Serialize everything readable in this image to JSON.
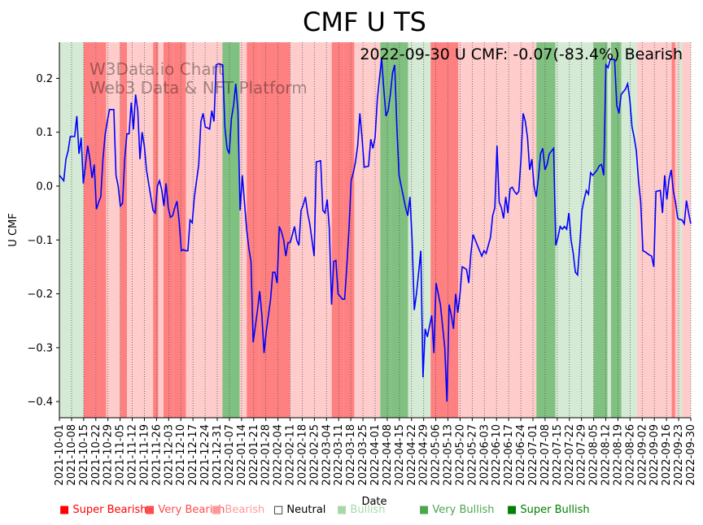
{
  "chart_data": {
    "type": "line",
    "title": "CMF U TS",
    "annotation": "2022-09-30 U CMF: -0.07(-83.4%) Bearish",
    "watermark": [
      "W3Data.io Chart",
      "Web3 Data & NFT Platform"
    ],
    "xlabel": "Date",
    "ylabel": "U CMF",
    "xlim": [
      "2021-10-01",
      "2022-09-30"
    ],
    "ylim": [
      -0.43,
      0.267
    ],
    "yticks": [
      0.2,
      0.1,
      0.0,
      -0.1,
      -0.2,
      -0.3,
      -0.4
    ],
    "ytick_labels": [
      "0.2",
      "0.1",
      "0.0",
      "−0.1",
      "−0.2",
      "−0.3",
      "−0.4"
    ],
    "xticks": [
      "2021-10-01",
      "2021-10-08",
      "2021-10-15",
      "2021-10-22",
      "2021-10-29",
      "2021-11-05",
      "2021-11-12",
      "2021-11-19",
      "2021-11-26",
      "2021-12-03",
      "2021-12-10",
      "2021-12-17",
      "2021-12-24",
      "2021-12-31",
      "2022-01-07",
      "2022-01-14",
      "2022-01-21",
      "2022-01-28",
      "2022-02-04",
      "2022-02-11",
      "2022-02-18",
      "2022-02-25",
      "2022-03-04",
      "2022-03-11",
      "2022-03-18",
      "2022-03-25",
      "2022-04-01",
      "2022-04-08",
      "2022-04-15",
      "2022-04-22",
      "2022-04-29",
      "2022-05-06",
      "2022-05-13",
      "2022-05-20",
      "2022-05-27",
      "2022-06-03",
      "2022-06-10",
      "2022-06-17",
      "2022-06-24",
      "2022-07-01",
      "2022-07-08",
      "2022-07-15",
      "2022-07-22",
      "2022-07-29",
      "2022-08-05",
      "2022-08-12",
      "2022-08-19",
      "2022-08-26",
      "2022-09-02",
      "2022-09-09",
      "2022-09-16",
      "2022-09-23",
      "2022-09-30"
    ],
    "grid": "vertical dotted at each x tick",
    "series": [
      {
        "color": "#0000ff",
        "values": [
          0.02,
          0.015,
          0.01,
          0.05,
          0.065,
          0.092,
          0.092,
          0.092,
          0.13,
          0.06,
          0.09,
          0.005,
          0.04,
          0.075,
          0.05,
          0.015,
          0.04,
          -0.043,
          -0.03,
          -0.02,
          0.05,
          0.095,
          0.12,
          0.142,
          0.142,
          0.142,
          0.02,
          0.0,
          -0.037,
          -0.032,
          0.05,
          0.097,
          0.097,
          0.155,
          0.105,
          0.17,
          0.14,
          0.05,
          0.1,
          0.075,
          0.03,
          0.005,
          -0.02,
          -0.045,
          -0.05,
          0.0,
          0.01,
          -0.007,
          -0.037,
          0.005,
          -0.04,
          -0.058,
          -0.055,
          -0.04,
          -0.028,
          -0.065,
          -0.12,
          -0.118,
          -0.12,
          -0.12,
          -0.063,
          -0.068,
          -0.02,
          0.01,
          0.04,
          0.12,
          0.135,
          0.11,
          0.108,
          0.106,
          0.14,
          0.12,
          0.225,
          0.227,
          0.226,
          0.225,
          0.11,
          0.07,
          0.06,
          0.125,
          0.15,
          0.19,
          0.14,
          -0.045,
          0.02,
          -0.03,
          -0.08,
          -0.115,
          -0.14,
          -0.29,
          -0.26,
          -0.23,
          -0.195,
          -0.24,
          -0.31,
          -0.27,
          -0.24,
          -0.21,
          -0.16,
          -0.16,
          -0.18,
          -0.075,
          -0.085,
          -0.1,
          -0.13,
          -0.105,
          -0.105,
          -0.09,
          -0.075,
          -0.1,
          -0.11,
          -0.045,
          -0.035,
          -0.02,
          -0.05,
          -0.07,
          -0.1,
          -0.13,
          0.045,
          0.046,
          0.047,
          -0.045,
          -0.05,
          -0.025,
          -0.08,
          -0.22,
          -0.14,
          -0.138,
          -0.2,
          -0.205,
          -0.21,
          -0.21,
          -0.15,
          -0.08,
          0.01,
          0.025,
          0.045,
          0.075,
          0.135,
          0.09,
          0.035,
          0.036,
          0.037,
          0.087,
          0.07,
          0.09,
          0.16,
          0.2,
          0.237,
          0.18,
          0.13,
          0.14,
          0.17,
          0.21,
          0.225,
          0.11,
          0.02,
          0.0,
          -0.02,
          -0.04,
          -0.055,
          -0.02,
          -0.1,
          -0.23,
          -0.2,
          -0.16,
          -0.12,
          -0.355,
          -0.265,
          -0.28,
          -0.26,
          -0.24,
          -0.31,
          -0.18,
          -0.2,
          -0.22,
          -0.26,
          -0.3,
          -0.4,
          -0.22,
          -0.24,
          -0.265,
          -0.2,
          -0.235,
          -0.2,
          -0.15,
          -0.152,
          -0.155,
          -0.18,
          -0.125,
          -0.09,
          -0.1,
          -0.11,
          -0.12,
          -0.13,
          -0.12,
          -0.125,
          -0.11,
          -0.095,
          -0.055,
          -0.04,
          0.075,
          -0.03,
          -0.04,
          -0.06,
          -0.02,
          -0.05,
          -0.005,
          -0.002,
          -0.01,
          -0.015,
          -0.01,
          0.05,
          0.135,
          0.12,
          0.09,
          0.03,
          0.05,
          0.0,
          -0.02,
          0.015,
          0.06,
          0.07,
          0.03,
          0.04,
          0.06,
          0.065,
          0.07,
          -0.11,
          -0.095,
          -0.075,
          -0.08,
          -0.075,
          -0.08,
          -0.05,
          -0.1,
          -0.125,
          -0.16,
          -0.165,
          -0.11,
          -0.045,
          -0.025,
          -0.008,
          -0.015,
          0.025,
          0.02,
          0.025,
          0.03,
          0.038,
          0.04,
          0.02,
          0.225,
          0.22,
          0.235,
          0.235,
          0.235,
          0.15,
          0.135,
          0.17,
          0.175,
          0.18,
          0.19,
          0.16,
          0.11,
          0.09,
          0.065,
          0.01,
          -0.03,
          -0.12,
          -0.122,
          -0.125,
          -0.128,
          -0.13,
          -0.15,
          -0.01,
          -0.009,
          -0.008,
          -0.05,
          0.02,
          -0.025,
          0.012,
          0.03,
          -0.01,
          -0.03,
          -0.06,
          -0.062,
          -0.063,
          -0.07,
          -0.027,
          -0.05,
          -0.07
        ]
      }
    ],
    "regime_bands": [
      {
        "start": "2021-10-01",
        "end": "2021-10-15",
        "regime": "bullish"
      },
      {
        "start": "2021-10-15",
        "end": "2021-10-22",
        "regime": "very_bearish"
      },
      {
        "start": "2021-10-22",
        "end": "2021-10-28",
        "regime": "very_bearish"
      },
      {
        "start": "2021-10-28",
        "end": "2021-11-05",
        "regime": "bearish"
      },
      {
        "start": "2021-11-05",
        "end": "2021-11-09",
        "regime": "very_bearish"
      },
      {
        "start": "2021-11-09",
        "end": "2021-11-13",
        "regime": "bearish"
      },
      {
        "start": "2021-11-13",
        "end": "2021-11-24",
        "regime": "bearish"
      },
      {
        "start": "2021-11-24",
        "end": "2021-11-27",
        "regime": "very_bearish"
      },
      {
        "start": "2021-11-27",
        "end": "2021-11-30",
        "regime": "bearish"
      },
      {
        "start": "2021-11-30",
        "end": "2021-12-06",
        "regime": "very_bearish"
      },
      {
        "start": "2021-12-06",
        "end": "2021-12-13",
        "regime": "very_bearish"
      },
      {
        "start": "2021-12-13",
        "end": "2021-12-29",
        "regime": "bearish"
      },
      {
        "start": "2021-12-29",
        "end": "2022-01-03",
        "regime": "bearish"
      },
      {
        "start": "2022-01-03",
        "end": "2022-01-13",
        "regime": "very_bullish"
      },
      {
        "start": "2022-01-13",
        "end": "2022-01-17",
        "regime": "bearish"
      },
      {
        "start": "2022-01-17",
        "end": "2022-01-24",
        "regime": "very_bearish"
      },
      {
        "start": "2022-01-24",
        "end": "2022-02-11",
        "regime": "very_bearish"
      },
      {
        "start": "2022-02-11",
        "end": "2022-03-07",
        "regime": "bearish"
      },
      {
        "start": "2022-03-07",
        "end": "2022-03-14",
        "regime": "very_bearish"
      },
      {
        "start": "2022-03-14",
        "end": "2022-03-20",
        "regime": "very_bearish"
      },
      {
        "start": "2022-03-20",
        "end": "2022-03-29",
        "regime": "bearish"
      },
      {
        "start": "2022-03-29",
        "end": "2022-04-04",
        "regime": "bearish"
      },
      {
        "start": "2022-04-04",
        "end": "2022-04-10",
        "regime": "very_bullish"
      },
      {
        "start": "2022-04-10",
        "end": "2022-04-20",
        "regime": "very_bullish"
      },
      {
        "start": "2022-04-20",
        "end": "2022-04-27",
        "regime": "bullish"
      },
      {
        "start": "2022-04-27",
        "end": "2022-05-03",
        "regime": "bullish"
      },
      {
        "start": "2022-05-03",
        "end": "2022-05-19",
        "regime": "very_bearish"
      },
      {
        "start": "2022-05-19",
        "end": "2022-06-26",
        "regime": "bearish"
      },
      {
        "start": "2022-06-26",
        "end": "2022-07-03",
        "regime": "bearish"
      },
      {
        "start": "2022-07-03",
        "end": "2022-07-14",
        "regime": "very_bullish"
      },
      {
        "start": "2022-07-14",
        "end": "2022-08-05",
        "regime": "bullish"
      },
      {
        "start": "2022-08-05",
        "end": "2022-08-13",
        "regime": "very_bullish"
      },
      {
        "start": "2022-08-13",
        "end": "2022-08-15",
        "regime": "bullish"
      },
      {
        "start": "2022-08-15",
        "end": "2022-08-21",
        "regime": "very_bullish"
      },
      {
        "start": "2022-08-21",
        "end": "2022-08-30",
        "regime": "bullish"
      },
      {
        "start": "2022-08-30",
        "end": "2022-09-19",
        "regime": "bearish"
      },
      {
        "start": "2022-09-19",
        "end": "2022-09-21",
        "regime": "very_bearish"
      },
      {
        "start": "2022-09-21",
        "end": "2022-09-23",
        "regime": "bearish"
      },
      {
        "start": "2022-09-23",
        "end": "2022-09-25",
        "regime": "bullish"
      },
      {
        "start": "2022-09-25",
        "end": "2022-09-30",
        "regime": "bearish"
      }
    ],
    "regime_colors": {
      "super_bearish": "#ff0000",
      "very_bearish": "#ff8080",
      "bearish": "#ffcccc",
      "neutral": "#ffffff",
      "bullish": "#d4ead4",
      "very_bullish": "#80c080",
      "super_bullish": "#008000"
    },
    "legend": [
      {
        "label": "Super Bearish",
        "color": "#ff0000"
      },
      {
        "label": "Very Bearish",
        "color": "#ff4c4c"
      },
      {
        "label": "Bearish",
        "color": "#ff9999"
      },
      {
        "label": "Neutral",
        "color": "#000000"
      },
      {
        "label": "Bullish",
        "color": "#a8d8a8"
      },
      {
        "label": "Very Bullish",
        "color": "#4ca64c"
      },
      {
        "label": "Super Bullish",
        "color": "#008000"
      }
    ],
    "legend_markers": [
      "■",
      "■",
      "■",
      "□",
      "■",
      "■",
      "■"
    ]
  }
}
